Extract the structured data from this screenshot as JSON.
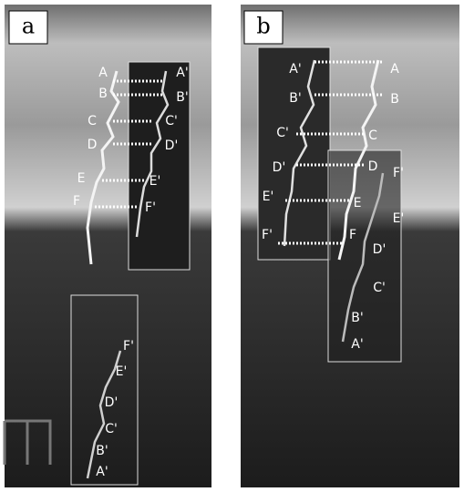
{
  "panels": [
    {
      "label": "a",
      "point_labels": [
        "A",
        "B",
        "C",
        "D",
        "E",
        "F",
        "A'",
        "B'",
        "C'",
        "D'",
        "E'",
        "F'",
        "F'",
        "E'",
        "D'",
        "C'",
        "B'",
        "A'"
      ]
    },
    {
      "label": "b",
      "point_labels": [
        "A'",
        "B'",
        "C'",
        "D'",
        "E'",
        "F'",
        "A",
        "B",
        "C",
        "D",
        "E",
        "F",
        "F'",
        "E'",
        "D'",
        "C'",
        "B'",
        "A'"
      ]
    }
  ]
}
